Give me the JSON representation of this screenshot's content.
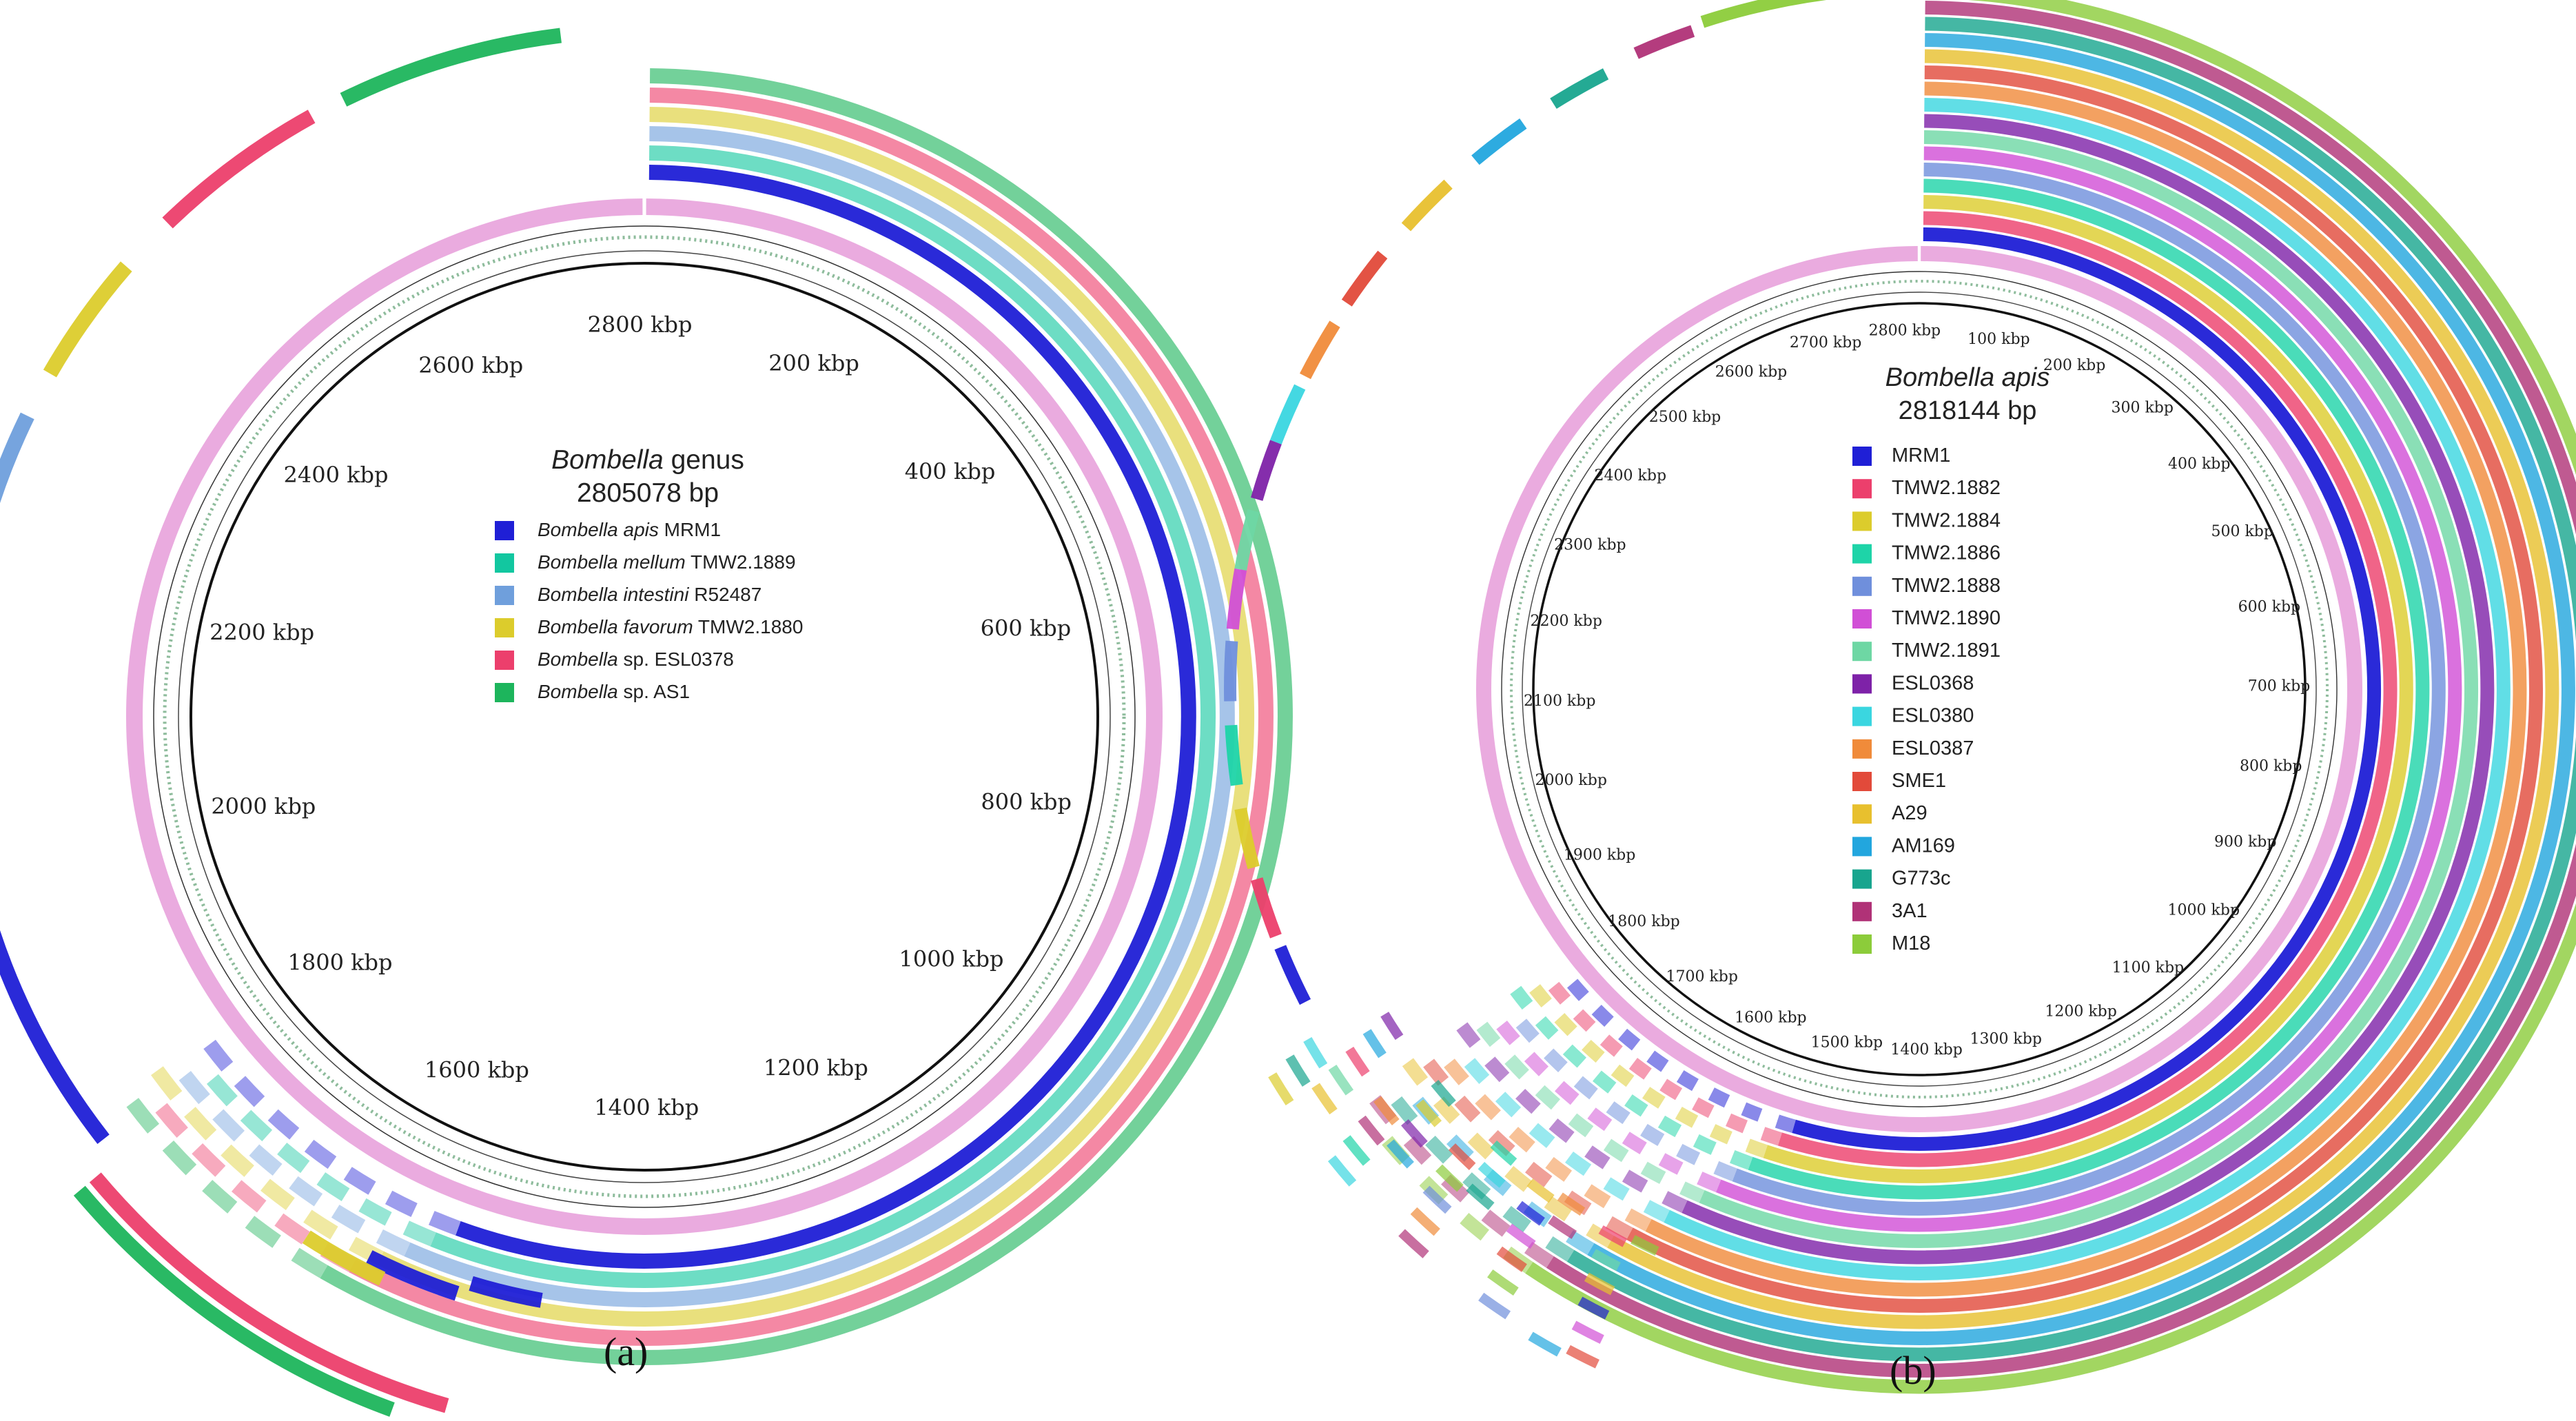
{
  "panel_a": {
    "label": "(a)",
    "title_italic": "Bombella",
    "title_rest": " genus",
    "size": "2805078 bp",
    "ticks": [
      "200 kbp",
      "400 kbp",
      "600 kbp",
      "800 kbp",
      "1000 kbp",
      "1200 kbp",
      "1400 kbp",
      "1600 kbp",
      "1800 kbp",
      "2000 kbp",
      "2200 kbp",
      "2400 kbp",
      "2600 kbp",
      "2800 kbp"
    ],
    "legend": [
      {
        "italic": "Bombella apis",
        "rest": " MRM1",
        "color": "#1f1fd6"
      },
      {
        "italic": "Bombella mellum",
        "rest": " TMW2.1889",
        "color": "#12c7a0"
      },
      {
        "italic": "Bombella intestini",
        "rest": " R52487",
        "color": "#6f9fdc"
      },
      {
        "italic": "Bombella favorum",
        "rest": " TMW2.1880",
        "color": "#dccc2c"
      },
      {
        "italic": "Bombella",
        "rest": " sp. ESL0378",
        "color": "#ec3f6c"
      },
      {
        "italic": "Bombella",
        "rest": " sp. AS1",
        "color": "#1db55c"
      }
    ]
  },
  "panel_b": {
    "label": "(b)",
    "title_italic": "Bombella apis",
    "size": "2818144 bp",
    "ticks": [
      "100 kbp",
      "200 kbp",
      "300 kbp",
      "400 kbp",
      "500 kbp",
      "600 kbp",
      "700 kbp",
      "800 kbp",
      "900 kbp",
      "1000 kbp",
      "1100 kbp",
      "1200 kbp",
      "1300 kbp",
      "1400 kbp",
      "1500 kbp",
      "1600 kbp",
      "1700 kbp",
      "1800 kbp",
      "1900 kbp",
      "2000 kbp",
      "2100 kbp",
      "2200 kbp",
      "2300 kbp",
      "2400 kbp",
      "2500 kbp",
      "2600 kbp",
      "2700 kbp",
      "2800 kbp"
    ],
    "legend": [
      {
        "label": "MRM1",
        "color": "#1f1fd6"
      },
      {
        "label": "TMW2.1882",
        "color": "#ec3f6c"
      },
      {
        "label": "TMW2.1884",
        "color": "#dccc2c"
      },
      {
        "label": "TMW2.1886",
        "color": "#1ed4a8"
      },
      {
        "label": "TMW2.1888",
        "color": "#6f8fdc"
      },
      {
        "label": "TMW2.1890",
        "color": "#d14fd6"
      },
      {
        "label": "TMW2.1891",
        "color": "#6ed7a4"
      },
      {
        "label": "ESL0368",
        "color": "#7e22a8"
      },
      {
        "label": "ESL0380",
        "color": "#3ad6e0"
      },
      {
        "label": "ESL0387",
        "color": "#f08b3a"
      },
      {
        "label": "SME1",
        "color": "#e24a3a"
      },
      {
        "label": "A29",
        "color": "#e8c02e"
      },
      {
        "label": "AM169",
        "color": "#22a6de"
      },
      {
        "label": "G773c",
        "color": "#18a58e"
      },
      {
        "label": "3A1",
        "color": "#b03277"
      },
      {
        "label": "M18",
        "color": "#8ccc3a"
      }
    ]
  }
}
